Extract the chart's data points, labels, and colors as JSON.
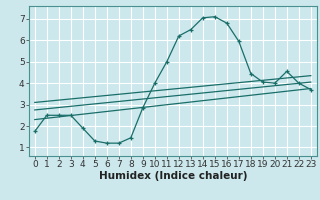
{
  "bg_color": "#cce8ec",
  "grid_color": "#ffffff",
  "line_color": "#1a6e6a",
  "xlabel": "Humidex (Indice chaleur)",
  "xlabel_fontsize": 7.5,
  "tick_fontsize": 6.5,
  "xlim": [
    -0.5,
    23.5
  ],
  "ylim": [
    0.6,
    7.6
  ],
  "xticks": [
    0,
    1,
    2,
    3,
    4,
    5,
    6,
    7,
    8,
    9,
    10,
    11,
    12,
    13,
    14,
    15,
    16,
    17,
    18,
    19,
    20,
    21,
    22,
    23
  ],
  "yticks": [
    1,
    2,
    3,
    4,
    5,
    6,
    7
  ],
  "wavy_x": [
    0,
    1,
    2,
    3,
    4,
    5,
    6,
    7,
    8,
    9,
    10,
    11,
    12,
    13,
    14,
    15,
    16,
    17,
    18,
    19,
    20,
    21,
    22,
    23
  ],
  "wavy_y": [
    1.75,
    2.5,
    2.5,
    2.5,
    1.9,
    1.3,
    1.2,
    1.2,
    1.45,
    2.85,
    4.0,
    5.0,
    6.2,
    6.5,
    7.05,
    7.1,
    6.8,
    5.95,
    4.45,
    4.05,
    4.0,
    4.55,
    4.0,
    3.7
  ],
  "line1_x0": 0,
  "line1_x1": 23,
  "line1_y0": 2.3,
  "line1_y1": 3.75,
  "line2_x0": 0,
  "line2_x1": 23,
  "line2_y0": 2.75,
  "line2_y1": 4.05,
  "line3_x0": 0,
  "line3_x1": 23,
  "line3_y0": 3.1,
  "line3_y1": 4.35
}
